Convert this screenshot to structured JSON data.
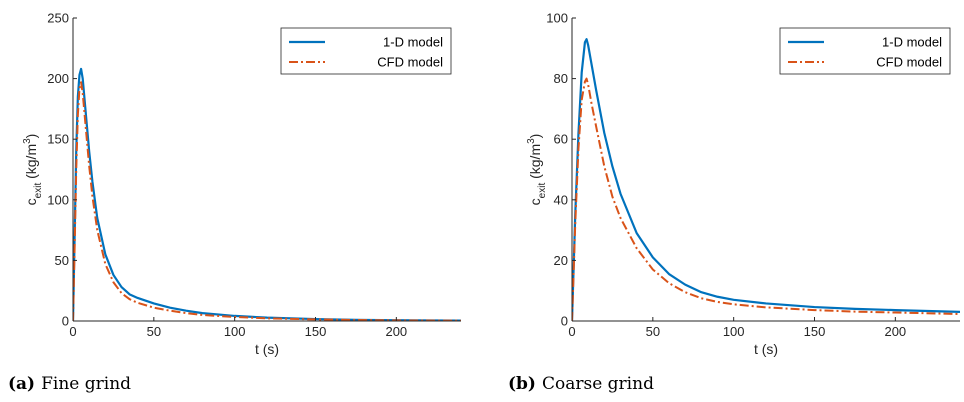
{
  "figure": {
    "panels": [
      {
        "tag": "(a)",
        "caption": "Fine grind"
      },
      {
        "tag": "(b)",
        "caption": "Coarse grind"
      }
    ]
  },
  "colors": {
    "series_1d": "#0072BD",
    "series_cfd": "#D95319"
  },
  "chart_data": [
    {
      "type": "line",
      "xlabel": "t (s)",
      "ylabel": "c_exit (kg/m^3)",
      "ylabel_parts": {
        "base": "c",
        "sub": "exit",
        "unit_pre": " (kg/m",
        "sup": "3",
        "unit_post": ")"
      },
      "xlim": [
        0,
        240
      ],
      "ylim": [
        0,
        250
      ],
      "xticks": [
        0,
        50,
        100,
        150,
        200
      ],
      "yticks": [
        0,
        50,
        100,
        150,
        200,
        250
      ],
      "legend": "top-right",
      "series": [
        {
          "name": "1-D model",
          "style": "solid",
          "x": [
            0,
            1,
            2,
            3,
            4,
            5,
            6,
            8,
            10,
            12,
            15,
            20,
            25,
            30,
            35,
            40,
            50,
            60,
            70,
            80,
            100,
            120,
            150,
            175,
            200,
            240
          ],
          "y": [
            0,
            70,
            140,
            185,
            203,
            208,
            200,
            170,
            140,
            115,
            85,
            55,
            38,
            28,
            22,
            19,
            14.5,
            11,
            8.5,
            6.5,
            4.2,
            2.8,
            1.6,
            1.0,
            0.6,
            0.3
          ]
        },
        {
          "name": "CFD model",
          "style": "dashdot",
          "x": [
            0,
            1,
            2,
            3,
            4,
            5,
            6,
            8,
            10,
            12,
            15,
            20,
            25,
            30,
            35,
            40,
            50,
            60,
            70,
            80,
            100,
            120,
            150,
            175,
            200,
            240
          ],
          "y": [
            0,
            60,
            125,
            170,
            192,
            197,
            188,
            158,
            128,
            103,
            75,
            47,
            32,
            23,
            18,
            15,
            11,
            8.5,
            6.5,
            5.0,
            3.3,
            2.2,
            1.3,
            0.8,
            0.5,
            0.25
          ]
        }
      ]
    },
    {
      "type": "line",
      "xlabel": "t (s)",
      "ylabel": "c_exit (kg/m^3)",
      "ylabel_parts": {
        "base": "c",
        "sub": "exit",
        "unit_pre": " (kg/m",
        "sup": "3",
        "unit_post": ")"
      },
      "xlim": [
        0,
        240
      ],
      "ylim": [
        0,
        100
      ],
      "xticks": [
        0,
        50,
        100,
        150,
        200
      ],
      "yticks": [
        0,
        20,
        40,
        60,
        80,
        100
      ],
      "legend": "top-right",
      "series": [
        {
          "name": "1-D model",
          "style": "solid",
          "x": [
            0,
            2,
            4,
            6,
            8,
            9,
            10,
            12,
            15,
            20,
            25,
            30,
            40,
            50,
            60,
            70,
            80,
            90,
            100,
            120,
            150,
            175,
            200,
            240
          ],
          "y": [
            0,
            35,
            62,
            82,
            92,
            93,
            91,
            85,
            76,
            62,
            51,
            42,
            29,
            21,
            15.5,
            12,
            9.5,
            8,
            7,
            5.8,
            4.6,
            4.0,
            3.6,
            3.0
          ]
        },
        {
          "name": "CFD model",
          "style": "dashdot",
          "x": [
            0,
            2,
            4,
            6,
            8,
            9,
            10,
            12,
            15,
            20,
            25,
            30,
            40,
            50,
            60,
            70,
            80,
            90,
            100,
            120,
            150,
            175,
            200,
            240
          ],
          "y": [
            0,
            32,
            57,
            73,
            79,
            80,
            78,
            72,
            64,
            51,
            41,
            34,
            24,
            17,
            12.5,
            9.5,
            7.5,
            6.3,
            5.5,
            4.5,
            3.6,
            3.1,
            2.8,
            2.3
          ]
        }
      ]
    }
  ]
}
